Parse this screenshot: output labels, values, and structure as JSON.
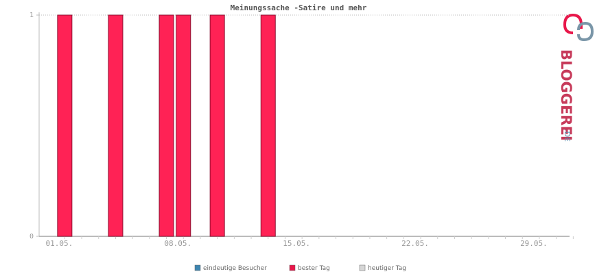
{
  "chart_data": {
    "type": "bar",
    "title": "Meinungssache -Satire und mehr",
    "categories": [
      "01.05.",
      null,
      null,
      null,
      null,
      null,
      null,
      "08.05.",
      null,
      null,
      null,
      null,
      null,
      null,
      "15.05.",
      null,
      null,
      null,
      null,
      null,
      null,
      "22.05.",
      null,
      null,
      null,
      null,
      null,
      null,
      "29.05.",
      null,
      null
    ],
    "values": [
      1,
      0,
      0,
      1,
      0,
      0,
      1,
      1,
      0,
      1,
      0,
      0,
      1,
      0,
      0,
      0,
      0,
      0,
      0,
      0,
      0,
      0,
      0,
      0,
      0,
      0,
      0,
      0,
      0,
      0,
      0
    ],
    "color": "#ff2255",
    "ylim": [
      0,
      1
    ],
    "yticks": [
      0,
      1
    ],
    "grid": true,
    "legend": [
      {
        "name": "eindeutige Besucher",
        "color": "#3d85b0"
      },
      {
        "name": "bester Tag",
        "color": "#e8174a"
      },
      {
        "name": "heutiger Tag",
        "color": "#d6d6d6"
      }
    ]
  },
  "logo": {
    "text": "BLOGGEREI",
    "suffix": ".DE"
  }
}
